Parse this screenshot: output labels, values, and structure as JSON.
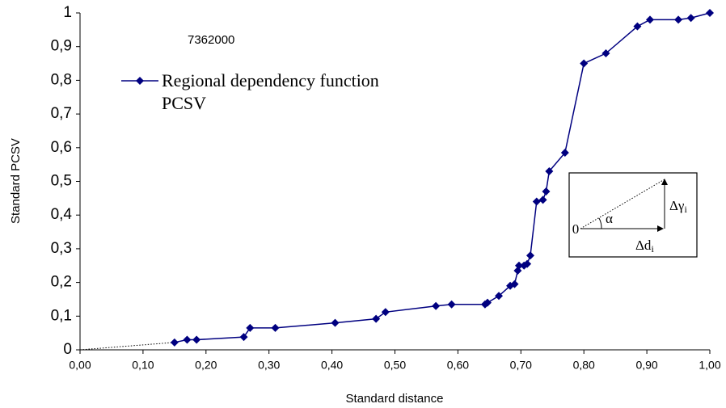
{
  "chart_data": {
    "type": "line",
    "annotation": "7362000",
    "x_label": "Standard distance",
    "y_label": "Standard PCSV",
    "xlim": [
      0,
      1
    ],
    "ylim": [
      0,
      1
    ],
    "xticks": [
      {
        "value": 0,
        "label": "0,00"
      },
      {
        "value": 0.1,
        "label": "0,10"
      },
      {
        "value": 0.2,
        "label": "0,20"
      },
      {
        "value": 0.3,
        "label": "0,30"
      },
      {
        "value": 0.4,
        "label": "0,40"
      },
      {
        "value": 0.5,
        "label": "0,50"
      },
      {
        "value": 0.6,
        "label": "0,60"
      },
      {
        "value": 0.7,
        "label": "0,70"
      },
      {
        "value": 0.8,
        "label": "0,80"
      },
      {
        "value": 0.9,
        "label": "0,90"
      },
      {
        "value": 1,
        "label": "1,00"
      }
    ],
    "yticks": [
      0,
      {
        "value": 0.1,
        "label": "0,1"
      },
      {
        "value": 0.2,
        "label": "0,2"
      },
      {
        "value": 0.3,
        "label": "0,3"
      },
      {
        "value": 0.4,
        "label": "0,4"
      },
      {
        "value": 0.5,
        "label": "0,5"
      },
      {
        "value": 0.6,
        "label": "0,6"
      },
      {
        "value": 0.7,
        "label": "0,7"
      },
      {
        "value": 0.8,
        "label": "0,8"
      },
      {
        "value": 0.9,
        "label": "0,9"
      },
      1
    ],
    "series": [
      {
        "name": "Regional dependency function PCSV",
        "color": "#000080",
        "x": [
          0.15,
          0.17,
          0.185,
          0.26,
          0.27,
          0.31,
          0.405,
          0.47,
          0.485,
          0.565,
          0.59,
          0.643,
          0.647,
          0.665,
          0.683,
          0.69,
          0.695,
          0.697,
          0.705,
          0.71,
          0.715,
          0.725,
          0.735,
          0.74,
          0.745,
          0.77,
          0.8,
          0.835,
          0.885,
          0.905,
          0.95,
          0.97,
          1.0
        ],
        "values": [
          0.022,
          0.03,
          0.03,
          0.038,
          0.065,
          0.065,
          0.08,
          0.092,
          0.112,
          0.13,
          0.135,
          0.135,
          0.14,
          0.16,
          0.19,
          0.195,
          0.235,
          0.25,
          0.25,
          0.255,
          0.28,
          0.44,
          0.445,
          0.47,
          0.53,
          0.585,
          0.85,
          0.88,
          0.96,
          0.98,
          0.98,
          0.985,
          1.0
        ]
      }
    ],
    "inset": {
      "origin": "0",
      "angle": "α",
      "dy": "Δγ",
      "dy_sub": "i",
      "dx": "Δd",
      "dx_sub": "i"
    }
  }
}
